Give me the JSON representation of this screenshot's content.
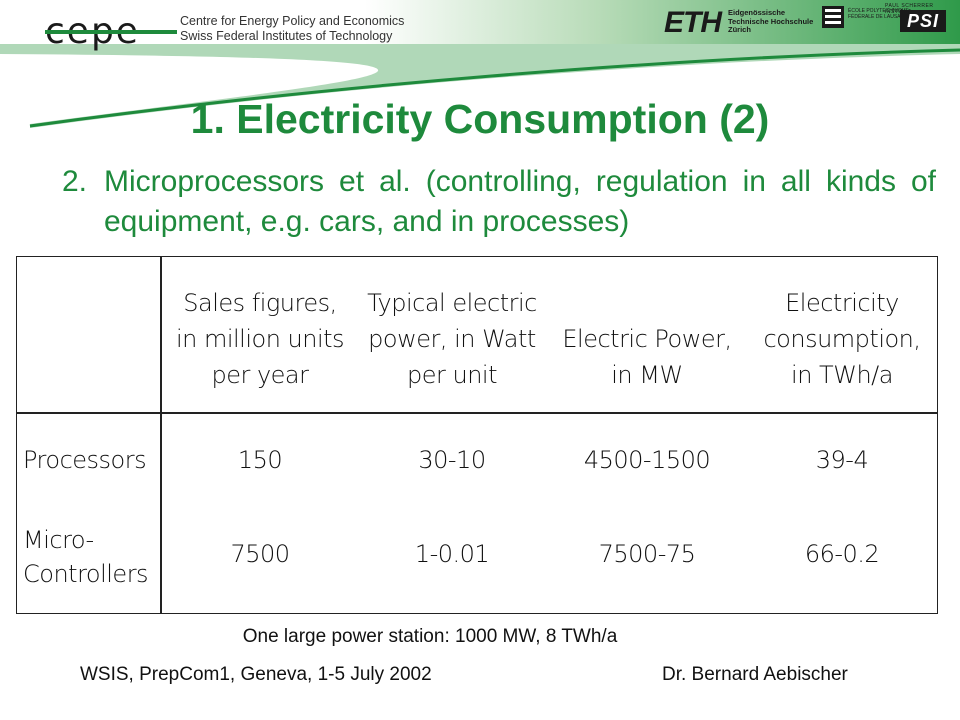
{
  "header": {
    "logo_text": "cepe",
    "tagline_line1": "Centre for Energy Policy and Economics",
    "tagline_line2": "Swiss Federal Institutes of Technology",
    "eth_logo": "ETH",
    "eth_line1": "Eidgenössische",
    "eth_line2": "Technische Hochschule",
    "eth_line3": "Zürich",
    "epfl_line1": "ÉCOLE POLYTECHNIQUE",
    "epfl_line2": "FÉDÉRALE DE LAUSANNE",
    "psi_top": "PAUL SCHERRER INSTITUT",
    "psi_logo": "PSI",
    "accent_color": "#1e8a3c"
  },
  "title": "1. Electricity Consumption (2)",
  "list_item": {
    "number": "2.",
    "text": "Microprocessors et al. (controlling, regulation in all kinds of equipment, e.g. cars, and in processes)"
  },
  "table": {
    "headers": [
      [
        "Sales figures,",
        "in million units",
        "per year"
      ],
      [
        "Typical electric",
        "power, in Watt",
        "per unit"
      ],
      [
        "Electric Power,",
        "in MW"
      ],
      [
        "Electricity",
        "consumption,",
        "in TWh/a"
      ]
    ],
    "rows": [
      {
        "label": [
          "Processors"
        ],
        "values": [
          "150",
          "30-10",
          "4500-1500",
          "39-4"
        ]
      },
      {
        "label": [
          "Micro-",
          "Controllers"
        ],
        "values": [
          "7500",
          "1-0.01",
          "7500-75",
          "66-0.2"
        ]
      }
    ]
  },
  "footnote": "One large power station: 1000 MW, 8 TWh/a",
  "footer": {
    "left": "WSIS, PrepCom1, Geneva, 1-5 July 2002",
    "right": "Dr. Bernard Aebischer"
  }
}
